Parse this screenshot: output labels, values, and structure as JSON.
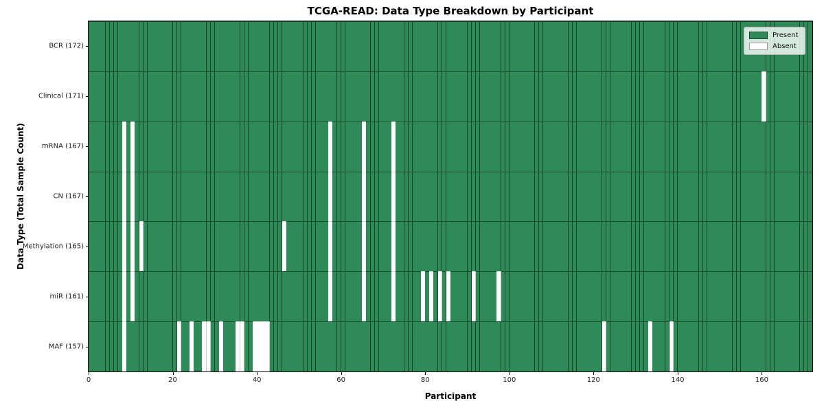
{
  "title": "TCGA-READ: Data Type Breakdown by Participant",
  "xlabel": "Participant",
  "ylabel": "Data Type (Total Sample Count)",
  "legend": {
    "present_label": "Present",
    "absent_label": "Absent"
  },
  "colors": {
    "present": "#2e8b57",
    "absent": "#ffffff",
    "present_cell_border": "rgba(0,0,0,0.5)",
    "absent_cell_border": "#c8c8c8",
    "spine": "#000000",
    "legend_border": "#b5b5b5",
    "legend_background": "rgba(255,255,255,0.8)"
  },
  "x_ticks": [
    0,
    20,
    40,
    60,
    80,
    100,
    120,
    140,
    160
  ],
  "chart_data": {
    "type": "heatmap",
    "title": "TCGA-READ: Data Type Breakdown by Participant",
    "xlabel": "Participant",
    "ylabel": "Data Type (Total Sample Count)",
    "x_range": [
      0,
      172
    ],
    "n_participants": 172,
    "grid": "cell-borders",
    "legend_position": "upper right",
    "legend_entries": [
      "Present",
      "Absent"
    ],
    "rows": [
      {
        "label": "BCR (172)",
        "data_type": "BCR",
        "total": 172,
        "absent": []
      },
      {
        "label": "Clinical (171)",
        "data_type": "Clinical",
        "total": 171,
        "absent": [
          160
        ]
      },
      {
        "label": "mRNA (167)",
        "data_type": "mRNA",
        "total": 167,
        "absent": [
          8,
          10,
          57,
          65,
          72
        ]
      },
      {
        "label": "CN (167)",
        "data_type": "CN",
        "total": 167,
        "absent": [
          8,
          10,
          57,
          65,
          72
        ]
      },
      {
        "label": "Methylation (165)",
        "data_type": "Methylation",
        "total": 165,
        "absent": [
          8,
          10,
          12,
          46,
          57,
          65,
          72
        ]
      },
      {
        "label": "miR (161)",
        "data_type": "miR",
        "total": 161,
        "absent": [
          8,
          10,
          57,
          65,
          72,
          79,
          81,
          83,
          85,
          91,
          97
        ]
      },
      {
        "label": "MAF (157)",
        "data_type": "MAF",
        "total": 157,
        "absent": [
          8,
          21,
          24,
          27,
          28,
          31,
          35,
          36,
          39,
          40,
          41,
          42,
          122,
          133,
          138
        ]
      }
    ]
  }
}
